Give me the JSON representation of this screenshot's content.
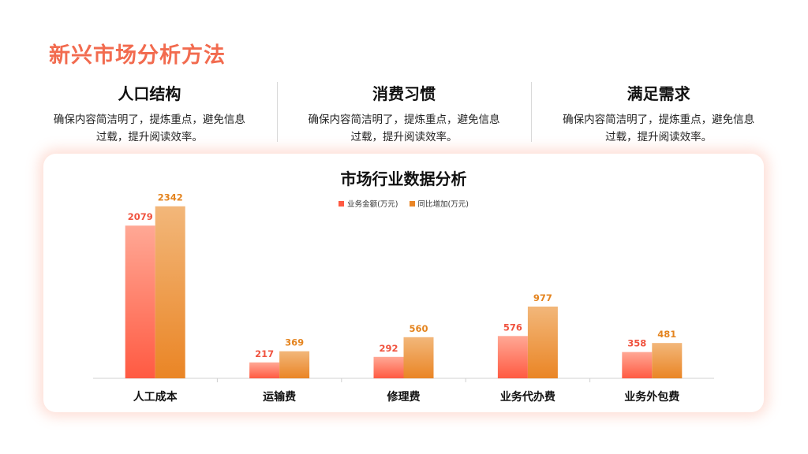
{
  "page": {
    "title": "新兴市场分析方法"
  },
  "columns": [
    {
      "title": "人口结构",
      "desc": "确保内容简洁明了，提炼重点，避免信息过载，提升阅读效率。"
    },
    {
      "title": "消费习惯",
      "desc": "确保内容简洁明了，提炼重点，避免信息过载，提升阅读效率。"
    },
    {
      "title": "满足需求",
      "desc": "确保内容简洁明了，提炼重点，避免信息过载，提升阅读效率。"
    }
  ],
  "colors": {
    "accent": "#f26b4f",
    "series1_top": "#ffa895",
    "series1_bottom": "#ff5a42",
    "series2_top": "#f2b77a",
    "series2_bottom": "#ea8525",
    "label1": "#f0533f",
    "label2": "#e4841f"
  },
  "chart_data": {
    "type": "bar",
    "title": "市场行业数据分析",
    "categories": [
      "人工成本",
      "运输费",
      "修理费",
      "业务代办费",
      "业务外包费"
    ],
    "series": [
      {
        "name": "业务金额(万元)",
        "values": [
          2079,
          217,
          292,
          576,
          358
        ]
      },
      {
        "name": "同比增加(万元)",
        "values": [
          2342,
          369,
          560,
          977,
          481
        ]
      }
    ],
    "ylim": [
      0,
      2500
    ],
    "grid": false,
    "legend": "top-center",
    "data_labels": true
  }
}
